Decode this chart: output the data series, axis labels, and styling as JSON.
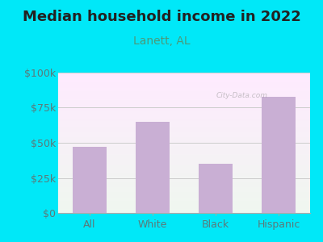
{
  "title": "Median household income in 2022",
  "subtitle": "Lanett, AL",
  "categories": [
    "All",
    "White",
    "Black",
    "Hispanic"
  ],
  "values": [
    47000,
    65000,
    35000,
    83000
  ],
  "bar_color": "#c9afd4",
  "title_fontsize": 13,
  "subtitle_fontsize": 10,
  "subtitle_color": "#4a9a7a",
  "title_color": "#222222",
  "tick_label_color": "#5a7a7a",
  "background_outer": "#00e8f8",
  "ylim": [
    0,
    100000
  ],
  "yticks": [
    0,
    25000,
    50000,
    75000,
    100000
  ],
  "ytick_labels": [
    "$0",
    "$25k",
    "$50k",
    "$75k",
    "$100k"
  ],
  "watermark": "City-Data.com",
  "bar_width": 0.55
}
